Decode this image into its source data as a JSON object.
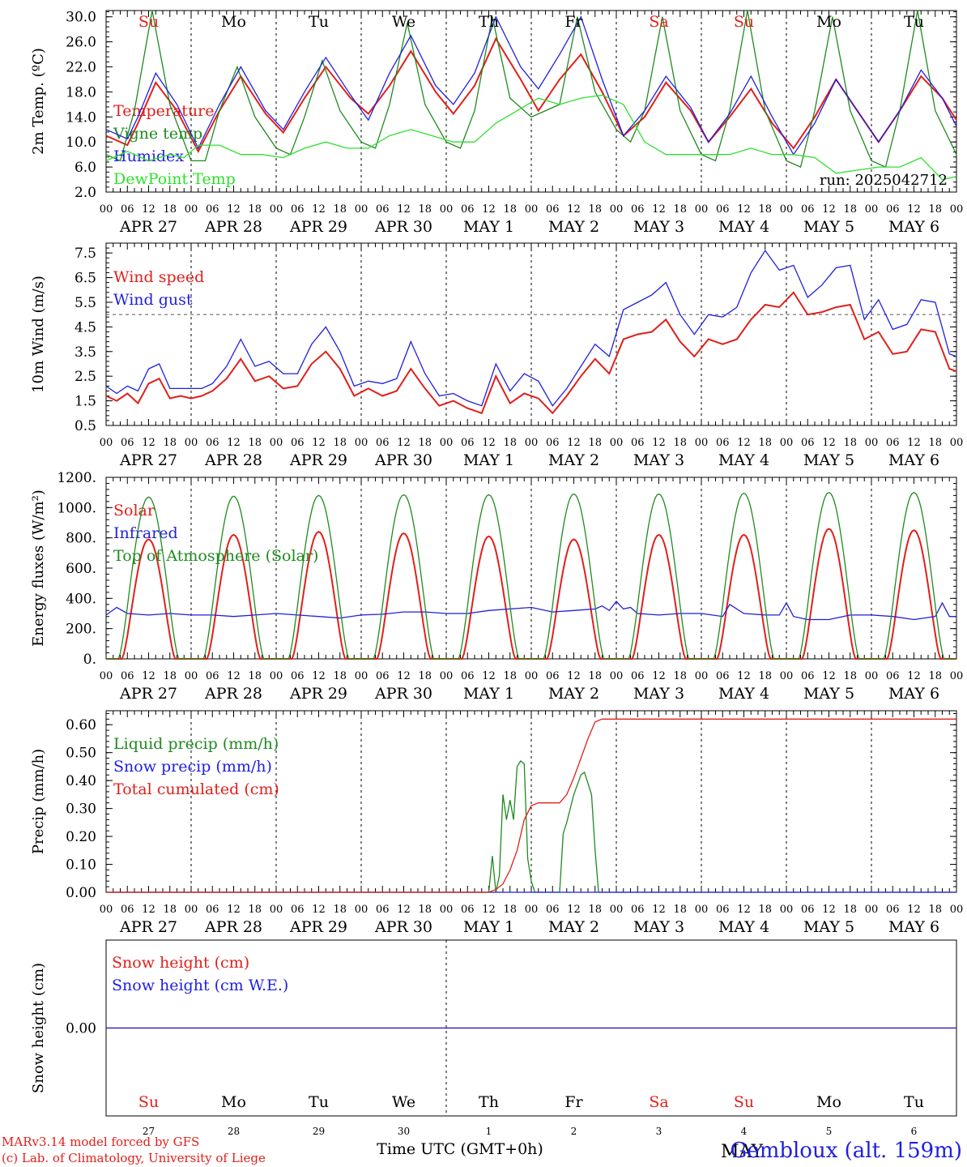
{
  "days": [
    {
      "label": "Su",
      "color": "#e0201b",
      "date": "APR 27",
      "num": "27"
    },
    {
      "label": "Mo",
      "color": "#000000",
      "date": "APR 28",
      "num": "28"
    },
    {
      "label": "Tu",
      "color": "#000000",
      "date": "APR 29",
      "num": "29"
    },
    {
      "label": "We",
      "color": "#000000",
      "date": "APR 30",
      "num": "30"
    },
    {
      "label": "Th",
      "color": "#000000",
      "date": "MAY  1",
      "num": "1"
    },
    {
      "label": "Fr",
      "color": "#000000",
      "date": "MAY  2",
      "num": "2"
    },
    {
      "label": "Sa",
      "color": "#e0201b",
      "date": "MAY  3",
      "num": "3"
    },
    {
      "label": "Su",
      "color": "#e0201b",
      "date": "MAY  4",
      "num": "4"
    },
    {
      "label": "Mo",
      "color": "#000000",
      "date": "MAY  5",
      "num": "5"
    },
    {
      "label": "Tu",
      "color": "#000000",
      "date": "MAY  6",
      "num": "6"
    }
  ],
  "hour_ticks": [
    "00",
    "06",
    "12",
    "18"
  ],
  "hour_tick_end": "00",
  "footer": {
    "credit1": "MARv3.14 model forced by GFS",
    "credit2": "(c) Lab. of Climatology, University of Liege",
    "xlabel": "Time UTC (GMT+0h)",
    "station": "Gembloux (alt. 159m)",
    "overlap_text": "MAY"
  },
  "run_label": "run: 2025042712",
  "colors": {
    "red": "#e0201b",
    "green": "#1f8a1f",
    "blue": "#1f1fe0",
    "lime": "#2ee02e",
    "grey": "#555555"
  },
  "chart_data": [
    {
      "type": "line",
      "ylabel": "2m Temp. (ºC)",
      "ylim": [
        2,
        31
      ],
      "yticks": [
        "30.0",
        "26.0",
        "22.0",
        "18.0",
        "14.0",
        "10.0",
        "6.0",
        "2.0"
      ],
      "ytick_values": [
        30,
        26,
        22,
        18,
        14,
        10,
        6,
        2
      ],
      "x_unit": "hours since Apr 27 00 UTC",
      "xlim": [
        0,
        240
      ],
      "series": [
        {
          "name": "Temperature",
          "color": "red",
          "x": [
            0,
            6,
            9,
            14,
            20,
            26,
            32,
            38,
            45,
            50,
            56,
            62,
            69,
            74,
            80,
            86,
            93,
            98,
            104,
            110,
            117,
            122,
            128,
            134,
            140,
            146,
            152,
            158,
            165,
            170,
            176,
            182,
            188,
            194,
            200,
            206,
            212,
            218,
            224,
            230,
            236,
            240
          ],
          "y": [
            11,
            9.5,
            13,
            19.5,
            15,
            8.5,
            15,
            20.5,
            14.5,
            11.5,
            17,
            22,
            17,
            14.5,
            19,
            24.5,
            18,
            14.5,
            19,
            26.5,
            20,
            15,
            20,
            24,
            18,
            11,
            14,
            19.5,
            15,
            10,
            14,
            18.5,
            13,
            9,
            14,
            20,
            15,
            10,
            15,
            20.5,
            17,
            13.5
          ]
        },
        {
          "name": "Vigne temp",
          "color": "green",
          "x": [
            0,
            4,
            8,
            13,
            18,
            24,
            28,
            32,
            37,
            42,
            48,
            52,
            56,
            61,
            66,
            72,
            76,
            80,
            85,
            90,
            96,
            100,
            104,
            109,
            114,
            120,
            124,
            128,
            133,
            138,
            144,
            148,
            152,
            157,
            162,
            168,
            172,
            176,
            181,
            186,
            192,
            196,
            200,
            205,
            210,
            216,
            220,
            224,
            229,
            234,
            240
          ],
          "y": [
            8,
            7,
            15,
            31,
            16,
            7,
            7,
            15,
            22,
            14,
            9,
            8,
            14,
            23,
            15,
            10,
            9,
            16,
            29,
            16,
            10,
            9,
            15,
            30,
            17,
            14,
            15,
            16,
            30,
            18,
            12,
            10,
            15,
            30,
            15,
            8,
            7,
            15,
            31,
            15,
            7,
            6,
            15,
            30,
            15,
            7,
            6,
            15,
            31,
            15,
            8
          ]
        },
        {
          "name": "Humidex",
          "color": "blue",
          "x": [
            0,
            6,
            9,
            14,
            20,
            26,
            32,
            38,
            45,
            50,
            56,
            62,
            69,
            74,
            80,
            86,
            93,
            98,
            104,
            110,
            117,
            122,
            128,
            134,
            140,
            146,
            152,
            158,
            165,
            170,
            176,
            182,
            188,
            194,
            200,
            206,
            212,
            218,
            224,
            230,
            236,
            240
          ],
          "y": [
            12,
            10.5,
            14,
            21,
            16,
            9,
            16,
            22,
            15,
            12,
            18,
            23.5,
            17.5,
            13.5,
            21,
            27,
            19,
            16,
            21,
            30,
            22,
            18.5,
            24,
            30,
            20,
            11,
            15,
            20.5,
            15.5,
            10,
            14.5,
            20.5,
            14,
            8,
            13,
            20,
            15,
            10,
            15,
            21.5,
            17,
            12.5
          ]
        },
        {
          "name": "DewPoint Temp",
          "color": "lime",
          "x": [
            0,
            6,
            12,
            18,
            22,
            26,
            32,
            38,
            44,
            50,
            56,
            62,
            68,
            74,
            80,
            86,
            92,
            98,
            104,
            110,
            116,
            122,
            128,
            134,
            140,
            146,
            152,
            158,
            164,
            170,
            176,
            182,
            188,
            194,
            200,
            206,
            212,
            218,
            224,
            230,
            236,
            240
          ],
          "y": [
            7,
            8.5,
            7,
            8,
            7.5,
            9.5,
            9.5,
            8,
            8,
            7.5,
            9,
            10,
            9,
            9,
            11,
            12,
            11,
            10,
            10,
            13,
            15,
            17,
            16,
            17,
            17.5,
            16,
            10,
            8,
            8,
            8,
            8,
            9,
            8,
            8,
            7.5,
            5,
            5.5,
            6,
            6,
            7.5,
            4,
            4.5
          ]
        }
      ]
    },
    {
      "type": "line",
      "ylabel": "10m Wind (m/s)",
      "ylim": [
        0.5,
        7.9
      ],
      "yticks": [
        "7.5",
        "6.5",
        "5.5",
        "4.5",
        "3.5",
        "2.5",
        "1.5",
        "0.5"
      ],
      "ytick_values": [
        7.5,
        6.5,
        5.5,
        4.5,
        3.5,
        2.5,
        1.5,
        0.5
      ],
      "reference_line": 5,
      "x_unit": "hours since Apr 27 00 UTC",
      "xlim": [
        0,
        240
      ],
      "series": [
        {
          "name": "Wind speed",
          "color": "red",
          "x": [
            0,
            3,
            6,
            9,
            12,
            15,
            18,
            21,
            24,
            27,
            30,
            34,
            38,
            42,
            46,
            50,
            54,
            58,
            62,
            66,
            70,
            74,
            78,
            82,
            86,
            90,
            94,
            98,
            102,
            106,
            110,
            114,
            118,
            122,
            126,
            130,
            134,
            138,
            142,
            146,
            150,
            154,
            158,
            162,
            166,
            170,
            174,
            178,
            182,
            186,
            190,
            194,
            198,
            202,
            206,
            210,
            214,
            218,
            222,
            226,
            230,
            234,
            238,
            240
          ],
          "y": [
            1.7,
            1.5,
            1.8,
            1.4,
            2.2,
            2.4,
            1.6,
            1.7,
            1.6,
            1.7,
            1.9,
            2.4,
            3.2,
            2.3,
            2.5,
            2.0,
            2.1,
            3.0,
            3.5,
            2.8,
            1.7,
            2.0,
            1.7,
            1.9,
            2.8,
            2.0,
            1.3,
            1.5,
            1.2,
            1.0,
            2.5,
            1.4,
            1.8,
            1.6,
            1.0,
            1.7,
            2.5,
            3.2,
            2.6,
            4.0,
            4.2,
            4.3,
            4.8,
            3.9,
            3.3,
            4.0,
            3.8,
            4.0,
            4.8,
            5.4,
            5.3,
            5.9,
            5.0,
            5.1,
            5.3,
            5.4,
            4.0,
            4.3,
            3.4,
            3.5,
            4.4,
            4.3,
            2.8,
            2.7
          ]
        },
        {
          "name": "Wind gust",
          "color": "blue",
          "x": [
            0,
            3,
            6,
            9,
            12,
            15,
            18,
            21,
            24,
            27,
            30,
            34,
            38,
            42,
            46,
            50,
            54,
            58,
            62,
            66,
            70,
            74,
            78,
            82,
            86,
            90,
            94,
            98,
            102,
            106,
            110,
            114,
            118,
            122,
            126,
            130,
            134,
            138,
            142,
            146,
            150,
            154,
            158,
            162,
            166,
            170,
            174,
            178,
            182,
            186,
            190,
            194,
            198,
            202,
            206,
            210,
            214,
            218,
            222,
            226,
            230,
            234,
            238,
            240
          ],
          "y": [
            2.1,
            1.8,
            2.1,
            1.9,
            2.8,
            3.0,
            2.0,
            2.0,
            2.0,
            2.0,
            2.2,
            2.9,
            4.0,
            2.9,
            3.1,
            2.6,
            2.6,
            3.8,
            4.5,
            3.5,
            2.1,
            2.3,
            2.2,
            2.4,
            3.9,
            2.6,
            1.7,
            1.8,
            1.5,
            1.3,
            3.0,
            1.9,
            2.6,
            2.3,
            1.3,
            2.0,
            2.9,
            3.8,
            3.3,
            5.2,
            5.5,
            5.8,
            6.3,
            5.0,
            4.2,
            5.0,
            4.9,
            5.3,
            6.7,
            7.6,
            6.8,
            7.0,
            5.7,
            6.2,
            6.9,
            7.0,
            4.8,
            5.6,
            4.4,
            4.6,
            5.6,
            5.5,
            3.4,
            3.3
          ]
        }
      ]
    },
    {
      "type": "line",
      "ylabel": "Energy fluxes (W/m²)",
      "ylim": [
        0,
        1200
      ],
      "yticks": [
        "1200.",
        "1000.",
        "800.",
        "600.",
        "400.",
        "200.",
        "0."
      ],
      "ytick_values": [
        1200,
        1000,
        800,
        600,
        400,
        200,
        0
      ],
      "x_unit": "hours since Apr 27 00 UTC",
      "xlim": [
        0,
        240
      ],
      "series": [
        {
          "name": "Solar",
          "color": "red",
          "peaks": [
            790,
            820,
            840,
            830,
            810,
            790,
            820,
            820,
            860,
            850
          ],
          "sunrise": 4.5,
          "sunset": 19.5
        },
        {
          "name": "Infrared",
          "color": "blue",
          "x": [
            0,
            3,
            6,
            12,
            18,
            24,
            30,
            36,
            42,
            48,
            54,
            60,
            66,
            72,
            78,
            84,
            90,
            96,
            102,
            108,
            114,
            120,
            126,
            132,
            138,
            140,
            142,
            144,
            146,
            148,
            150,
            156,
            162,
            168,
            174,
            176,
            180,
            186,
            190,
            192,
            194,
            198,
            204,
            210,
            216,
            222,
            228,
            234,
            236,
            238,
            240
          ],
          "y": [
            290,
            340,
            300,
            290,
            300,
            290,
            290,
            280,
            290,
            300,
            290,
            280,
            270,
            290,
            295,
            310,
            310,
            300,
            300,
            320,
            330,
            340,
            310,
            320,
            330,
            350,
            320,
            380,
            330,
            340,
            300,
            290,
            300,
            300,
            280,
            360,
            300,
            290,
            290,
            370,
            280,
            260,
            260,
            290,
            290,
            280,
            260,
            280,
            370,
            280,
            280
          ]
        },
        {
          "name": "Top of Atmosphere (Solar)",
          "color": "green",
          "peaks": [
            1070,
            1075,
            1080,
            1085,
            1085,
            1090,
            1090,
            1095,
            1100,
            1100
          ],
          "sunrise": 3.5,
          "sunset": 20.5
        }
      ]
    },
    {
      "type": "line",
      "ylabel": "Precip (mm/h)",
      "ylim": [
        0,
        0.65
      ],
      "yticks": [
        "0.60",
        "0.50",
        "0.40",
        "0.30",
        "0.20",
        "0.10",
        "0.00"
      ],
      "ytick_values": [
        0.6,
        0.5,
        0.4,
        0.3,
        0.2,
        0.1,
        0
      ],
      "x_unit": "hours since Apr 27 00 UTC",
      "xlim": [
        0,
        240
      ],
      "series": [
        {
          "name": "Liquid precip (mm/h)",
          "color": "green",
          "x": [
            0,
            108,
            109,
            110,
            111,
            112,
            113,
            114,
            115,
            116,
            117,
            118,
            119,
            120,
            121,
            122,
            123,
            128,
            129,
            130,
            132,
            134,
            135,
            137,
            138,
            139,
            140,
            240
          ],
          "y": [
            0,
            0,
            0.13,
            0,
            0.06,
            0.35,
            0.26,
            0.33,
            0.26,
            0.45,
            0.47,
            0.46,
            0.12,
            0.04,
            0,
            0,
            0,
            0,
            0.21,
            0.25,
            0.35,
            0.42,
            0.43,
            0.35,
            0.15,
            0,
            0,
            0
          ]
        },
        {
          "name": "Snow precip (mm/h)",
          "color": "blue",
          "x": [
            0,
            240
          ],
          "y": [
            0,
            0
          ]
        },
        {
          "name": "Total cumulated (cm)",
          "color": "red",
          "x": [
            0,
            108,
            110,
            112,
            114,
            116,
            118,
            120,
            122,
            124,
            126,
            128,
            130,
            132,
            134,
            136,
            138,
            140,
            240
          ],
          "y": [
            0,
            0,
            0.01,
            0.03,
            0.08,
            0.15,
            0.26,
            0.31,
            0.32,
            0.32,
            0.32,
            0.32,
            0.35,
            0.41,
            0.48,
            0.55,
            0.61,
            0.62,
            0.62
          ]
        }
      ]
    },
    {
      "type": "line",
      "ylabel": "Snow height (cm)",
      "ylim": [
        -0.5,
        0.5
      ],
      "yticks": [
        "0.00"
      ],
      "ytick_values": [
        0
      ],
      "x_unit": "hours since Apr 27 00 UTC",
      "xlim": [
        0,
        240
      ],
      "series": [
        {
          "name": "Snow height (cm)",
          "color": "red",
          "x": [
            0,
            240
          ],
          "y": [
            0,
            0
          ]
        },
        {
          "name": "Snow height (cm W.E.)",
          "color": "blue",
          "x": [
            0,
            240
          ],
          "y": [
            0,
            0
          ]
        }
      ]
    }
  ]
}
